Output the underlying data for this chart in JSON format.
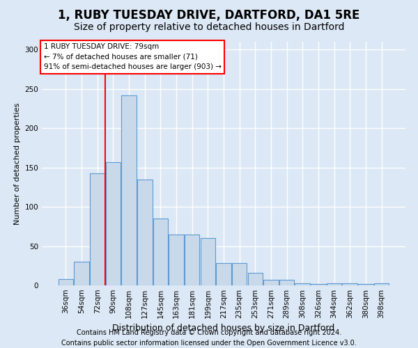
{
  "title1": "1, RUBY TUESDAY DRIVE, DARTFORD, DA1 5RE",
  "title2": "Size of property relative to detached houses in Dartford",
  "xlabel": "Distribution of detached houses by size in Dartford",
  "ylabel": "Number of detached properties",
  "categories": [
    "36sqm",
    "54sqm",
    "72sqm",
    "90sqm",
    "108sqm",
    "127sqm",
    "145sqm",
    "163sqm",
    "181sqm",
    "199sqm",
    "217sqm",
    "235sqm",
    "253sqm",
    "271sqm",
    "289sqm",
    "308sqm",
    "326sqm",
    "344sqm",
    "362sqm",
    "380sqm",
    "398sqm"
  ],
  "values": [
    8,
    30,
    143,
    157,
    242,
    135,
    85,
    65,
    65,
    60,
    28,
    28,
    16,
    7,
    7,
    3,
    2,
    3,
    3,
    2,
    3
  ],
  "bar_color": "#c9d9ea",
  "bar_edge_color": "#5b9bd5",
  "annotation_line1": "1 RUBY TUESDAY DRIVE: 79sqm",
  "annotation_line2": "← 7% of detached houses are smaller (71)",
  "annotation_line3": "91% of semi-detached houses are larger (903) →",
  "ylim": [
    0,
    310
  ],
  "yticks": [
    0,
    50,
    100,
    150,
    200,
    250,
    300
  ],
  "footer_line1": "Contains HM Land Registry data © Crown copyright and database right 2024.",
  "footer_line2": "Contains public sector information licensed under the Open Government Licence v3.0.",
  "background_color": "#dce8f5",
  "plot_bg_color": "#dce8f5",
  "grid_color": "#ffffff",
  "title1_fontsize": 12,
  "title2_fontsize": 10,
  "xlabel_fontsize": 9,
  "ylabel_fontsize": 8,
  "tick_fontsize": 7.5,
  "annotation_fontsize": 7.5,
  "footer_fontsize": 7
}
